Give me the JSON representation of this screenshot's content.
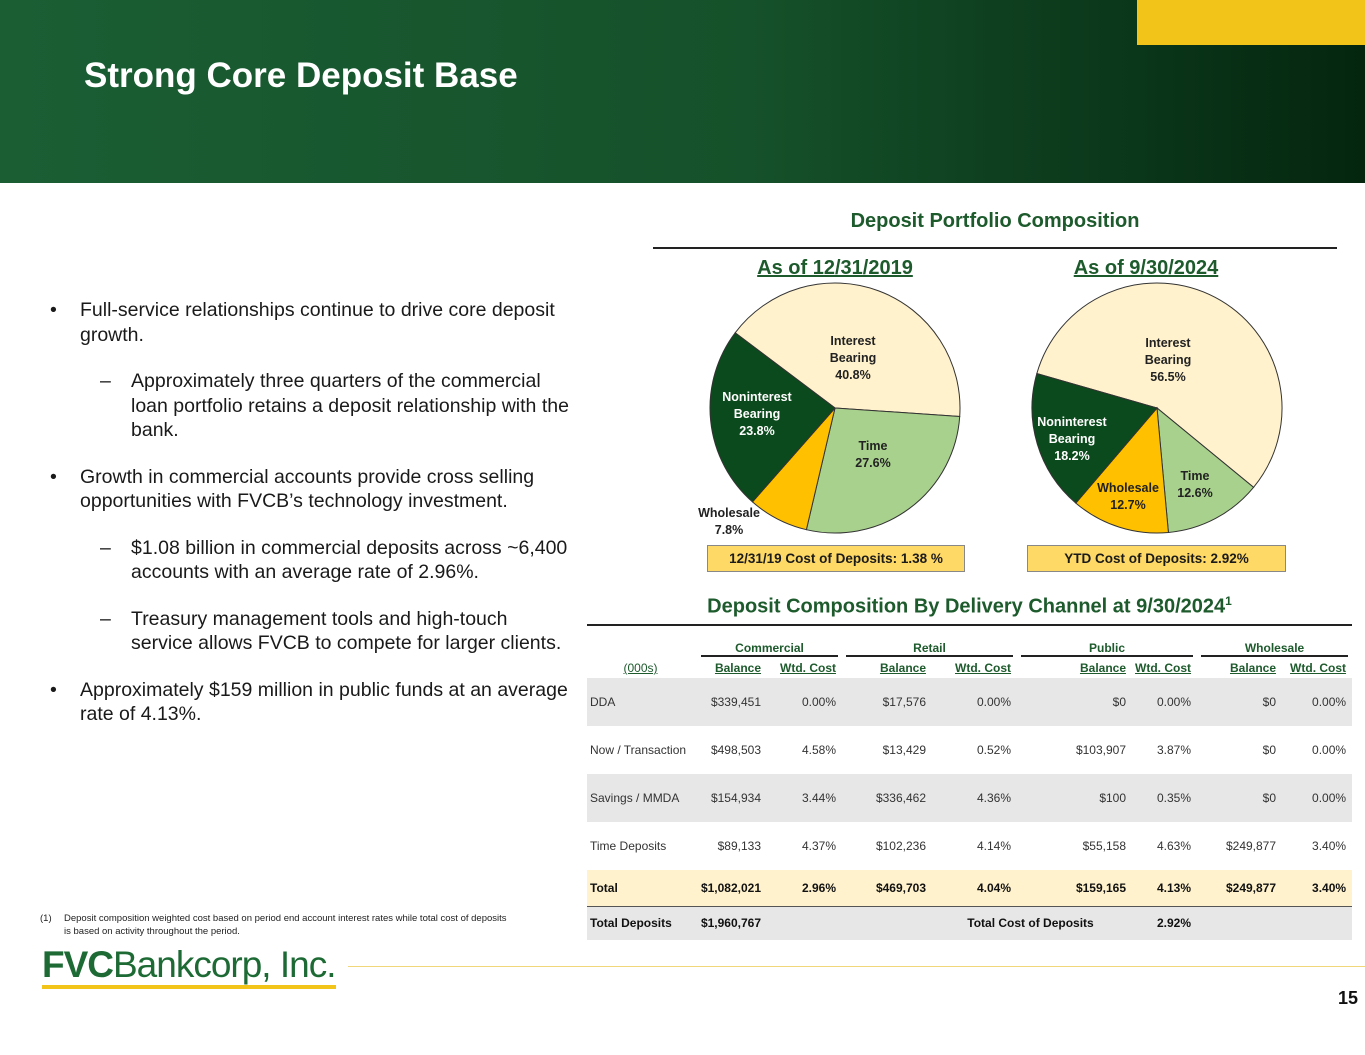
{
  "header": {
    "title": "Strong Core Deposit Base"
  },
  "bullets": [
    {
      "level": 1,
      "text": "Full-service relationships continue to drive core deposit growth."
    },
    {
      "level": 2,
      "text": "Approximately three quarters of the commercial loan portfolio retains a deposit relationship with the bank."
    },
    {
      "level": 1,
      "text": "Growth in commercial accounts provide cross selling opportunities with FVCB’s technology investment."
    },
    {
      "level": 2,
      "text": "$1.08 billion in commercial deposits across ~6,400 accounts with an average rate of 2.96%."
    },
    {
      "level": 2,
      "text": "Treasury management tools and high-touch service allows FVCB to compete for larger clients."
    },
    {
      "level": 1,
      "text": "Approximately $159 million in public funds at an average rate of 4.13%."
    }
  ],
  "section_title": "Deposit Portfolio Composition",
  "chart_data": [
    {
      "type": "pie",
      "title": "As of 12/31/2019",
      "categories": [
        "Interest Bearing",
        "Time",
        "Wholesale",
        "Noninterest Bearing"
      ],
      "values": [
        40.8,
        27.6,
        7.8,
        23.8
      ],
      "value_labels": [
        "40.8%",
        "27.6%",
        "7.8%",
        "23.8%"
      ],
      "colors": [
        "#fff2cc",
        "#a9d18e",
        "#ffc000",
        "#0b4a1c"
      ],
      "cost_box": "12/31/19 Cost of Deposits: 1.38 %"
    },
    {
      "type": "pie",
      "title": "As of 9/30/2024",
      "categories": [
        "Interest Bearing",
        "Time",
        "Wholesale",
        "Noninterest Bearing"
      ],
      "values": [
        56.5,
        12.6,
        12.7,
        18.2
      ],
      "value_labels": [
        "56.5%",
        "12.6%",
        "12.7%",
        "18.2%"
      ],
      "colors": [
        "#fff2cc",
        "#a9d18e",
        "#ffc000",
        "#0b4a1c"
      ],
      "cost_box": "YTD Cost of Deposits: 2.92%"
    }
  ],
  "table": {
    "title": "Deposit Composition By Delivery Channel at 9/30/2024",
    "title_note": "1",
    "groups": [
      "Commercial",
      "Retail",
      "Public",
      "Wholesale"
    ],
    "columns": [
      "(000s)",
      "Balance",
      "Wtd. Cost",
      "Balance",
      "Wtd. Cost",
      "Balance",
      "Wtd. Cost",
      "Balance",
      "Wtd. Cost"
    ],
    "rows": [
      [
        "DDA",
        "$339,451",
        "0.00%",
        "$17,576",
        "0.00%",
        "$0",
        "0.00%",
        "$0",
        "0.00%"
      ],
      [
        "Now / Transaction",
        "$498,503",
        "4.58%",
        "$13,429",
        "0.52%",
        "$103,907",
        "3.87%",
        "$0",
        "0.00%"
      ],
      [
        "Savings / MMDA",
        "$154,934",
        "3.44%",
        "$336,462",
        "4.36%",
        "$100",
        "0.35%",
        "$0",
        "0.00%"
      ],
      [
        "Time Deposits",
        "$89,133",
        "4.37%",
        "$102,236",
        "4.14%",
        "$55,158",
        "4.63%",
        "$249,877",
        "3.40%"
      ],
      [
        "Total",
        "$1,082,021",
        "2.96%",
        "$469,703",
        "4.04%",
        "$159,165",
        "4.13%",
        "$249,877",
        "3.40%"
      ]
    ],
    "total_deposits": [
      "Total Deposits",
      "$1,960,767",
      "Total Cost of Deposits",
      "2.92%"
    ]
  },
  "footnote": {
    "marker": "(1)",
    "text": "Deposit composition weighted cost based on period end account interest rates while total cost of deposits is based on activity throughout the period."
  },
  "logo": {
    "bold": "FVC",
    "rest": "Bankcorp, Inc."
  },
  "page_number": "15"
}
